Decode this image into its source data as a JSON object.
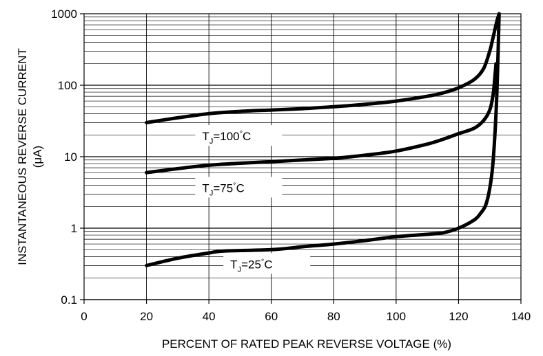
{
  "chart_data": {
    "type": "line",
    "xlabel": "PERCENT OF RATED PEAK REVERSE VOLTAGE (%)",
    "ylabel_line1": "INSTANTANEOUS REVERSE CURRENT",
    "ylabel_line2": "(μA)",
    "xlim": [
      0,
      140
    ],
    "ylim": [
      0.1,
      1000
    ],
    "yscale": "log",
    "grid": "minor-log-horizontal",
    "x_ticks": [
      0,
      20,
      40,
      60,
      80,
      100,
      120,
      140
    ],
    "x_tick_labels": [
      "0",
      "20",
      "40",
      "60",
      "80",
      "100",
      "120",
      "140"
    ],
    "y_ticks": [
      0.1,
      1,
      10,
      100,
      1000
    ],
    "y_tick_labels": [
      "0.1",
      "1",
      "10",
      "100",
      "1000"
    ],
    "series": [
      {
        "name": "TJ=100°C",
        "label_main": "T",
        "label_sub": "J",
        "label_rest": "=100",
        "label_deg": "°",
        "label_unit": "C",
        "x": [
          20,
          30,
          40,
          50,
          60,
          70,
          80,
          90,
          100,
          110,
          115,
          120,
          125,
          128,
          130,
          131,
          132,
          132.5,
          133
        ],
        "y": [
          30,
          35,
          40,
          43,
          45,
          47,
          50,
          54,
          60,
          70,
          78,
          92,
          120,
          170,
          300,
          450,
          700,
          850,
          1000
        ]
      },
      {
        "name": "TJ=75°C",
        "label_main": "T",
        "label_sub": "J",
        "label_rest": "=75",
        "label_deg": "°",
        "label_unit": "C",
        "x": [
          20,
          30,
          40,
          50,
          60,
          70,
          80,
          90,
          100,
          110,
          115,
          120,
          125,
          128,
          130,
          131,
          131.5,
          132
        ],
        "y": [
          6,
          6.8,
          7.6,
          8.1,
          8.5,
          9,
          9.5,
          10.5,
          12,
          15,
          17.5,
          21,
          25,
          32,
          45,
          70,
          110,
          200
        ]
      },
      {
        "name": "TJ=25°C",
        "label_main": "T",
        "label_sub": "J",
        "label_rest": "=25",
        "label_deg": "°",
        "label_unit": "C",
        "x": [
          20,
          30,
          40,
          45,
          60,
          70,
          80,
          90,
          100,
          110,
          115,
          120,
          125,
          127,
          128.5,
          129.5,
          130.5,
          131.2,
          132,
          132.5,
          133
        ],
        "y": [
          0.3,
          0.38,
          0.45,
          0.48,
          0.5,
          0.55,
          0.6,
          0.67,
          0.76,
          0.82,
          0.86,
          1.0,
          1.3,
          1.6,
          2.0,
          2.8,
          5,
          10,
          40,
          150,
          1000
        ]
      }
    ]
  }
}
